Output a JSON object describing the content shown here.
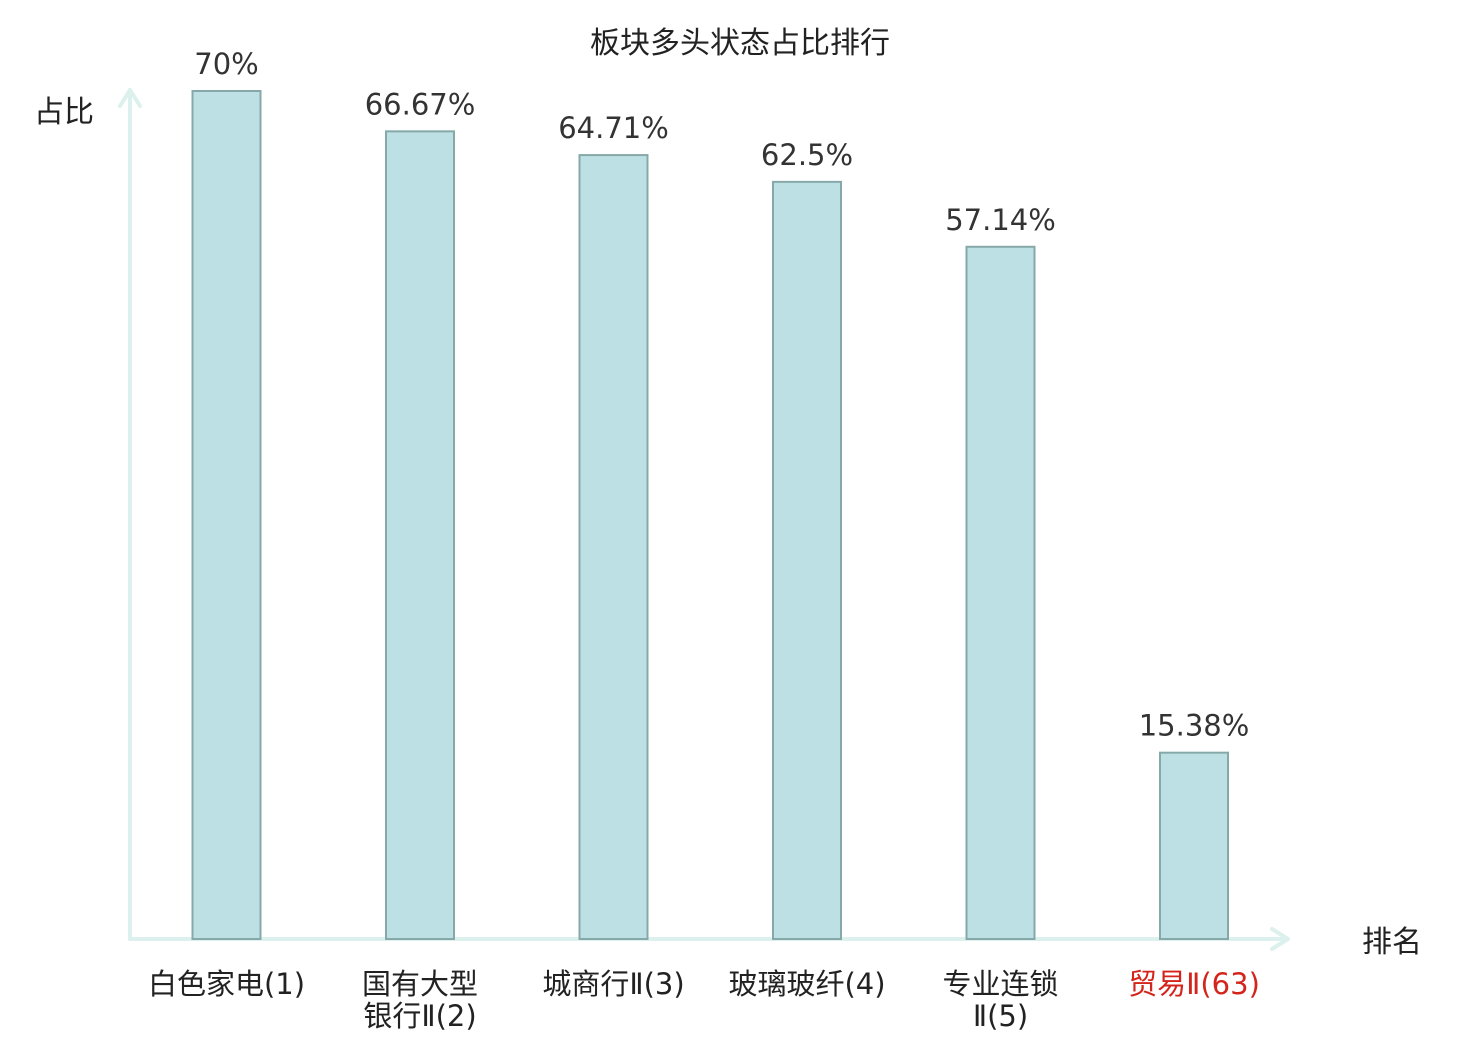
{
  "chart_data": {
    "type": "bar",
    "title": "板块多头状态占比排行",
    "ylabel": "占比",
    "xlabel": "排名",
    "ylim": [
      0,
      72
    ],
    "grid": false,
    "categories": [
      [
        "白色家电(1)"
      ],
      [
        "国有大型",
        "银行Ⅱ(2)"
      ],
      [
        "城商行Ⅱ(3)"
      ],
      [
        "玻璃玻纤(4)"
      ],
      [
        "专业连锁",
        "Ⅱ(5)"
      ],
      [
        "贸易Ⅱ(63)"
      ]
    ],
    "values": [
      70,
      66.67,
      64.71,
      62.5,
      57.14,
      15.38
    ],
    "value_labels": [
      "70%",
      "66.67%",
      "64.71%",
      "62.5%",
      "57.14%",
      "15.38%"
    ],
    "highlight_index": 5
  },
  "colors": {
    "bar_fill": "#bce0e3",
    "bar_stroke": "#86a8a8",
    "axis": "#dcf0ee",
    "text": "#333333",
    "label_text": "#222222",
    "highlight": "#d4251c"
  }
}
